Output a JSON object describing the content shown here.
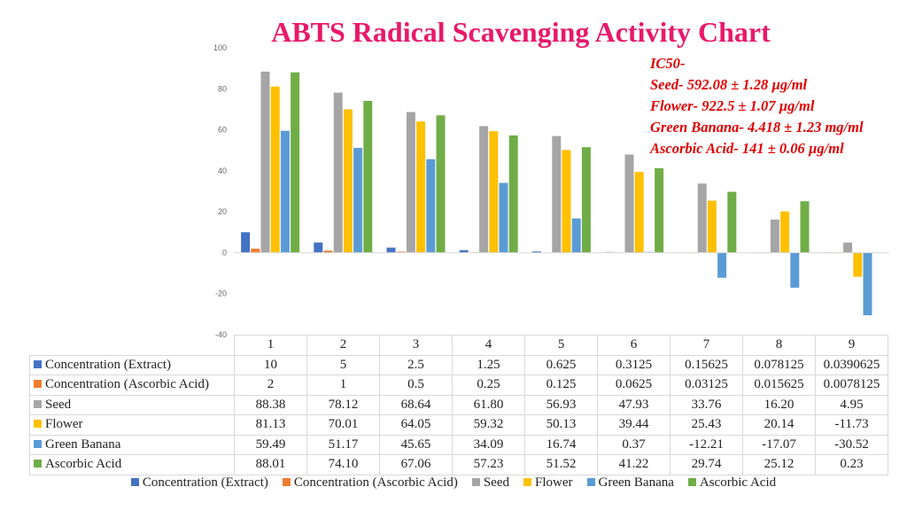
{
  "colors": {
    "title": "#e8196a",
    "annotation": "#e00000",
    "axis_text": "#666666",
    "series": [
      "#4472c4",
      "#ed7d31",
      "#a5a5a5",
      "#ffc000",
      "#5b9bd5",
      "#70ad47"
    ]
  },
  "chart_data": {
    "type": "bar",
    "title": "ABTS Radical Scavenging Activity Chart",
    "annotation": [
      "IC50-",
      "Seed- 592.08 ±  1.28 µg/ml",
      "Flower- 922.5 ± 1.07 µg/ml",
      "Green Banana- 4.418 ± 1.23 mg/ml",
      "Ascorbic Acid- 141 ± 0.06 µg/ml"
    ],
    "categories": [
      "1",
      "2",
      "3",
      "4",
      "5",
      "6",
      "7",
      "8",
      "9"
    ],
    "ylim": [
      -40,
      100
    ],
    "yticks": [
      "100",
      "80",
      "60",
      "40",
      "20",
      "0",
      "-20",
      "-40"
    ],
    "grid": false,
    "legend_position": "bottom",
    "series": [
      {
        "name": "Concentration (Extract)",
        "values": [
          10,
          5,
          2.5,
          1.25,
          0.625,
          0.3125,
          0.15625,
          0.078125,
          0.0390625
        ],
        "labels": [
          "10",
          "5",
          "2.5",
          "1.25",
          "0.625",
          "0.3125",
          "0.15625",
          "0.078125",
          "0.0390625"
        ]
      },
      {
        "name": "Concentration (Ascorbic Acid)",
        "values": [
          2,
          1,
          0.5,
          0.25,
          0.125,
          0.0625,
          0.03125,
          0.015625,
          0.0078125
        ],
        "labels": [
          "2",
          "1",
          "0.5",
          "0.25",
          "0.125",
          "0.0625",
          "0.03125",
          "0.015625",
          "0.0078125"
        ]
      },
      {
        "name": "Seed",
        "values": [
          88.38,
          78.12,
          68.64,
          61.8,
          56.93,
          47.93,
          33.76,
          16.2,
          4.95
        ],
        "labels": [
          "88.38",
          "78.12",
          "68.64",
          "61.80",
          "56.93",
          "47.93",
          "33.76",
          "16.20",
          "4.95"
        ]
      },
      {
        "name": "Flower",
        "values": [
          81.13,
          70.01,
          64.05,
          59.32,
          50.13,
          39.44,
          25.43,
          20.14,
          -11.73
        ],
        "labels": [
          "81.13",
          "70.01",
          "64.05",
          "59.32",
          "50.13",
          "39.44",
          "25.43",
          "20.14",
          "-11.73"
        ]
      },
      {
        "name": "Green Banana",
        "values": [
          59.49,
          51.17,
          45.65,
          34.09,
          16.74,
          0.37,
          -12.21,
          -17.07,
          -30.52
        ],
        "labels": [
          "59.49",
          "51.17",
          "45.65",
          "34.09",
          "16.74",
          "0.37",
          "-12.21",
          "-17.07",
          "-30.52"
        ]
      },
      {
        "name": "Ascorbic Acid",
        "values": [
          88.01,
          74.1,
          67.06,
          57.23,
          51.52,
          41.22,
          29.74,
          25.12,
          0.23
        ],
        "labels": [
          "88.01",
          "74.10",
          "67.06",
          "57.23",
          "51.52",
          "41.22",
          "29.74",
          "25.12",
          "0.23"
        ]
      }
    ]
  }
}
